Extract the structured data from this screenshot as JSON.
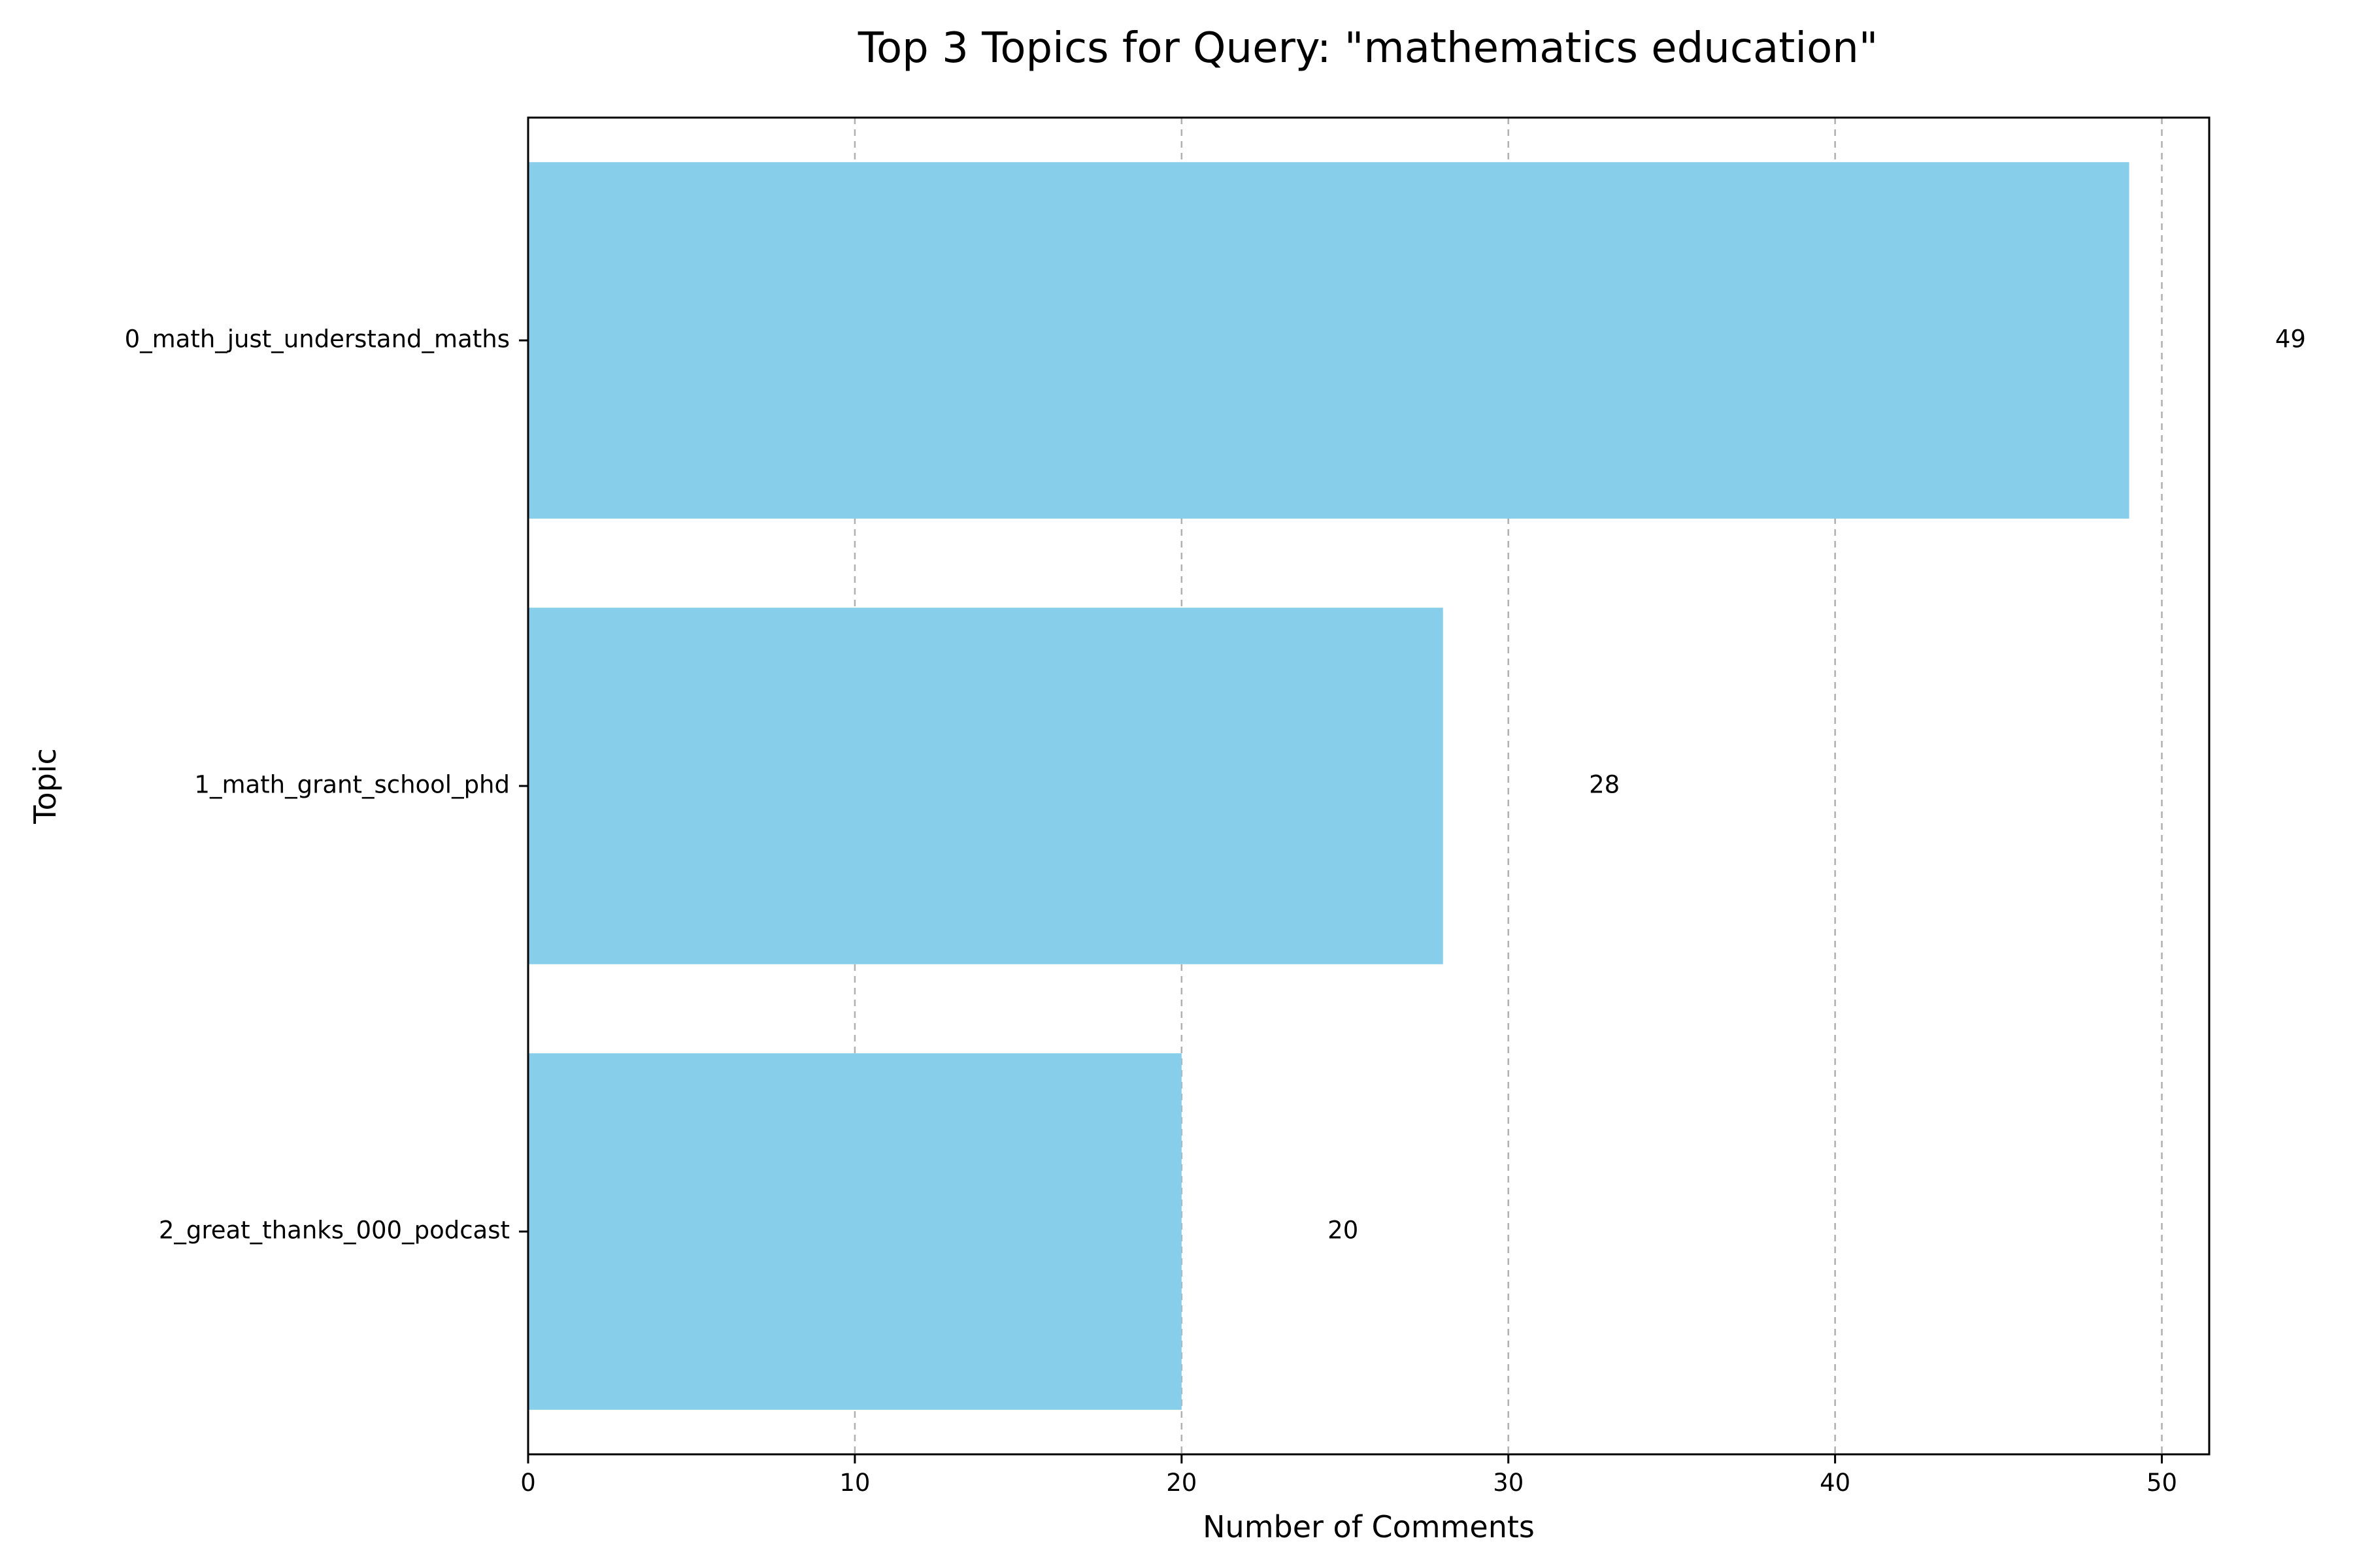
{
  "chart_data": {
    "type": "bar",
    "orientation": "horizontal",
    "title": "Top 3 Topics for Query: \"mathematics education\"",
    "xlabel": "Number of Comments",
    "ylabel": "Topic",
    "categories": [
      "0_math_just_understand_maths",
      "1_math_grant_school_phd",
      "2_great_thanks_000_podcast"
    ],
    "values": [
      49,
      28,
      20
    ],
    "data_labels": [
      "49",
      "28",
      "20"
    ],
    "xlim": [
      0,
      51.45
    ],
    "xticks": [
      0,
      10,
      20,
      30,
      40,
      50
    ],
    "grid": "x-axis dashed",
    "legend": "none",
    "bar_color": "#87ceeb"
  }
}
